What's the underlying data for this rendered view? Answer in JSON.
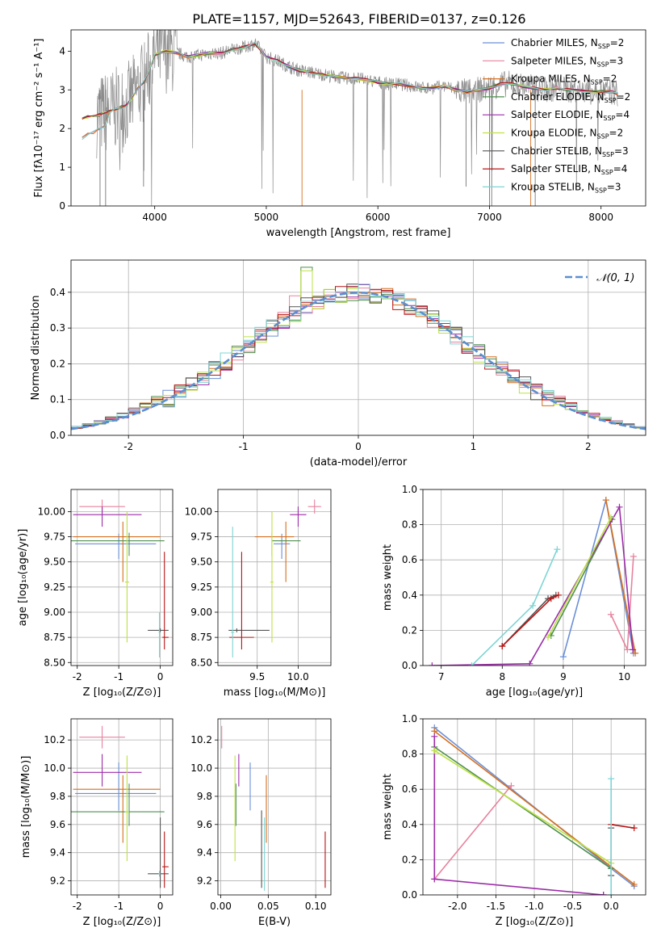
{
  "figure": {
    "title": "PLATE=1157, MJD=52643, FIBERID=0137, z=0.126"
  },
  "colors": [
    "#6b8fd6",
    "#e8829e",
    "#d56f1e",
    "#4f8f4f",
    "#9b2ca8",
    "#bde244",
    "#555555",
    "#b81414",
    "#7fd4d4"
  ],
  "models": [
    {
      "name": "Chabrier MILES, N",
      "sub": "SSP",
      "suffix": "=2"
    },
    {
      "name": "Salpeter MILES, N",
      "sub": "SSP",
      "suffix": "=3"
    },
    {
      "name": "Kroupa MILES, N",
      "sub": "SSP",
      "suffix": "=2"
    },
    {
      "name": "Chabrier ELODIE, N",
      "sub": "SSP",
      "suffix": "=2"
    },
    {
      "name": "Salpeter ELODIE, N",
      "sub": "SSP",
      "suffix": "=4"
    },
    {
      "name": "Kroupa ELODIE, N",
      "sub": "SSP",
      "suffix": "=2"
    },
    {
      "name": "Chabrier STELIB, N",
      "sub": "SSP",
      "suffix": "=3"
    },
    {
      "name": "Salpeter STELIB, N",
      "sub": "SSP",
      "suffix": "=4"
    },
    {
      "name": "Kroupa STELIB, N",
      "sub": "SSP",
      "suffix": "=3"
    }
  ],
  "chart_data": [
    {
      "id": "spectrum",
      "type": "line",
      "xlabel": "wavelength [Angstrom, rest frame]",
      "ylabel": "Flux [fλ10⁻¹⁷ erg cm⁻² s⁻¹ A⁻¹]",
      "xlim": [
        3250,
        8400
      ],
      "ylim": [
        0,
        4.55
      ],
      "xticks": [
        4000,
        5000,
        6000,
        7000,
        8000
      ],
      "yticks": [
        0,
        1,
        2,
        3,
        4
      ],
      "data_x": [
        3500,
        3700,
        3900,
        4100,
        4300,
        4500,
        4700,
        4900,
        5100,
        5300,
        5500,
        5700,
        5900,
        6100,
        6300,
        6500,
        6700,
        6900,
        7100,
        7300,
        7500,
        7700,
        7900,
        8100
      ],
      "data_y": [
        2.1,
        2.6,
        3.6,
        3.9,
        3.8,
        3.9,
        3.85,
        4.0,
        3.6,
        3.45,
        3.35,
        3.25,
        3.3,
        3.1,
        3.05,
        3.0,
        2.9,
        3.0,
        3.1,
        3.0,
        3.0,
        2.95,
        2.95,
        2.9
      ],
      "model_x": [
        3350,
        3400,
        3450,
        3500,
        3550,
        3600,
        3650,
        3700,
        3750,
        3800,
        3850,
        3900,
        3950,
        4000,
        4100,
        4200,
        4300,
        4400,
        4500,
        4600,
        4700,
        4800,
        4900,
        5000,
        5100,
        5200,
        5300,
        5400,
        5500,
        5600,
        5700,
        5800,
        5900,
        6000,
        6100,
        6200,
        6300,
        6400,
        6500,
        6600,
        6700,
        6800,
        6900,
        7000,
        7100,
        7200,
        7300,
        7400,
        7500,
        7600,
        7700,
        7800,
        7900,
        8000,
        8100,
        8150
      ],
      "model_y": [
        2.25,
        2.3,
        2.3,
        2.35,
        2.4,
        2.45,
        2.5,
        2.55,
        2.6,
        2.8,
        3.05,
        3.2,
        3.5,
        3.9,
        4.0,
        3.95,
        3.85,
        3.9,
        3.95,
        3.95,
        4.05,
        4.1,
        4.2,
        3.85,
        3.75,
        3.6,
        3.5,
        3.45,
        3.4,
        3.35,
        3.3,
        3.3,
        3.25,
        3.2,
        3.15,
        3.15,
        3.1,
        3.05,
        3.05,
        3.1,
        3.0,
        2.95,
        3.0,
        3.05,
        3.15,
        3.15,
        3.1,
        3.05,
        3.0,
        3.05,
        3.0,
        3.0,
        2.95,
        2.95,
        2.95,
        2.9
      ],
      "model_low_y": [
        1.75,
        1.85,
        1.9,
        2.0,
        2.05
      ]
    },
    {
      "id": "residuals",
      "type": "area",
      "xlabel": "(data-model)/error",
      "ylabel": "Normed distribution",
      "xlim": [
        -2.5,
        2.5
      ],
      "ylim": [
        0,
        0.49
      ],
      "xticks": [
        -2,
        -1,
        0,
        1,
        2
      ],
      "yticks": [
        0.0,
        0.1,
        0.2,
        0.3,
        0.4
      ],
      "legend": "𝒩(0, 1)",
      "bin_width": 0.1,
      "bin_start": -2.5
    },
    {
      "id": "age-vs-Z",
      "type": "scatter",
      "xlabel": "Z [log₁₀(Z/Z⊙)]",
      "ylabel": "age  [log₁₀(age/yr)]",
      "xlim": [
        -2.15,
        0.3
      ],
      "ylim": [
        8.47,
        10.22
      ],
      "xticks": [
        -2,
        -1,
        0
      ],
      "yticks": [
        8.5,
        8.75,
        9.0,
        9.25,
        9.5,
        9.75,
        10.0
      ],
      "points": [
        {
          "m": 0,
          "x": -1.0,
          "xerr": [
            1.05,
            0.9
          ],
          "y": 9.68,
          "yerr": [
            0.15,
            0.1
          ]
        },
        {
          "m": 1,
          "x": -1.4,
          "xerr": [
            0.55,
            0.55
          ],
          "y": 10.05,
          "yerr": [
            0.07,
            0.07
          ]
        },
        {
          "m": 2,
          "x": -0.9,
          "xerr": [
            1.2,
            0.9
          ],
          "y": 9.75,
          "yerr": [
            0.45,
            0.15
          ]
        },
        {
          "m": 3,
          "x": -0.75,
          "xerr": [
            1.4,
            0.85
          ],
          "y": 9.71,
          "yerr": [
            0.15,
            0.08
          ]
        },
        {
          "m": 4,
          "x": -1.4,
          "xerr": [
            0.7,
            0.95
          ],
          "y": 9.97,
          "yerr": [
            0.12,
            0.08
          ]
        },
        {
          "m": 5,
          "x": -0.8,
          "xerr": [
            0.05,
            0.05
          ],
          "y": 9.3,
          "yerr": [
            0.6,
            0.7
          ]
        },
        {
          "m": 6,
          "x": -0.0,
          "xerr": [
            0.3,
            0.2
          ],
          "y": 8.82,
          "yerr": [
            0.02,
            0.02
          ]
        },
        {
          "m": 7,
          "x": 0.1,
          "xerr": [
            0.05,
            0.1
          ],
          "y": 8.75,
          "yerr": [
            0.12,
            0.85
          ]
        },
        {
          "m": 8,
          "x": -0.02,
          "xerr": [
            0.02,
            0.02
          ],
          "y": 8.8,
          "yerr": [
            0.25,
            0.2
          ]
        }
      ]
    },
    {
      "id": "age-vs-mass",
      "type": "scatter",
      "xlabel": "mass [log₁₀(M/M⊙)]",
      "ylabel": "",
      "xlim": [
        9.02,
        10.4
      ],
      "ylim": [
        8.47,
        10.22
      ],
      "xticks": [
        9.5,
        10.0
      ],
      "yticks": [
        8.5,
        8.75,
        9.0,
        9.25,
        9.5,
        9.75,
        10.0
      ],
      "points": [
        {
          "m": 0,
          "x": 9.8,
          "xerr": [
            0.1,
            0.1
          ],
          "y": 9.68,
          "yerr": [
            0.15,
            0.1
          ]
        },
        {
          "m": 1,
          "x": 10.2,
          "xerr": [
            0.08,
            0.08
          ],
          "y": 10.05,
          "yerr": [
            0.07,
            0.07
          ]
        },
        {
          "m": 2,
          "x": 9.85,
          "xerr": [
            0.38,
            0.1
          ],
          "y": 9.75,
          "yerr": [
            0.45,
            0.15
          ]
        },
        {
          "m": 3,
          "x": 9.68,
          "xerr": [
            0.0,
            0.35
          ],
          "y": 9.71,
          "yerr": [
            0.15,
            0.08
          ]
        },
        {
          "m": 4,
          "x": 10.0,
          "xerr": [
            0.1,
            0.1
          ],
          "y": 9.97,
          "yerr": [
            0.12,
            0.08
          ]
        },
        {
          "m": 5,
          "x": 9.68,
          "xerr": [
            0.02,
            0.02
          ],
          "y": 9.3,
          "yerr": [
            0.6,
            0.7
          ]
        },
        {
          "m": 6,
          "x": 9.25,
          "xerr": [
            0.1,
            0.4
          ],
          "y": 8.82,
          "yerr": [
            0.02,
            0.02
          ]
        },
        {
          "m": 7,
          "x": 9.31,
          "xerr": [
            0.15,
            0.15
          ],
          "y": 8.75,
          "yerr": [
            0.12,
            0.85
          ]
        },
        {
          "m": 8,
          "x": 9.2,
          "xerr": [
            0.02,
            0.02
          ],
          "y": 8.8,
          "yerr": [
            0.25,
            1.05
          ]
        }
      ]
    },
    {
      "id": "massweight-vs-age",
      "type": "line",
      "xlabel": "age  [log₁₀(age/yr)]",
      "ylabel": "mass weight",
      "xlim": [
        6.7,
        10.35
      ],
      "ylim": [
        0,
        1.0
      ],
      "xticks": [
        7,
        8,
        9,
        10
      ],
      "yticks": [
        0.0,
        0.2,
        0.4,
        0.6,
        0.8,
        1.0
      ],
      "series": [
        {
          "m": 0,
          "x": [
            9.0,
            9.7,
            10.15
          ],
          "y": [
            0.05,
            0.94,
            0.07
          ]
        },
        {
          "m": 1,
          "x": [
            9.78,
            10.05,
            10.15
          ],
          "y": [
            0.29,
            0.09,
            0.62
          ]
        },
        {
          "m": 2,
          "x": [
            9.7,
            10.18
          ],
          "y": [
            0.94,
            0.07
          ]
        },
        {
          "m": 3,
          "x": [
            8.8,
            9.8
          ],
          "y": [
            0.17,
            0.83
          ]
        },
        {
          "m": 4,
          "x": [
            6.85,
            8.45,
            9.92,
            10.14
          ],
          "y": [
            0.0,
            0.01,
            0.9,
            0.09
          ]
        },
        {
          "m": 5,
          "x": [
            8.75,
            9.78
          ],
          "y": [
            0.16,
            0.84
          ]
        },
        {
          "m": 6,
          "x": [
            8.0,
            8.75,
            8.88
          ],
          "y": [
            0.11,
            0.38,
            0.4
          ]
        },
        {
          "m": 7,
          "x": [
            8.0,
            8.8,
            8.92
          ],
          "y": [
            0.11,
            0.38,
            0.4
          ]
        },
        {
          "m": 8,
          "x": [
            7.5,
            8.5,
            8.9
          ],
          "y": [
            0.0,
            0.34,
            0.66
          ]
        }
      ]
    },
    {
      "id": "mass-vs-Z",
      "type": "scatter",
      "xlabel": "Z [log₁₀(Z/Z⊙)]",
      "ylabel": "mass [log₁₀(M/M⊙)]",
      "xlim": [
        -2.15,
        0.3
      ],
      "ylim": [
        9.1,
        10.35
      ],
      "xticks": [
        -2,
        -1,
        0
      ],
      "yticks": [
        9.2,
        9.4,
        9.6,
        9.8,
        10.0,
        10.2
      ],
      "points": [
        {
          "m": 0,
          "x": -1.0,
          "xerr": [
            1.05,
            0.9
          ],
          "y": 9.82,
          "yerr": [
            0.12,
            0.22
          ]
        },
        {
          "m": 1,
          "x": -1.4,
          "xerr": [
            0.55,
            0.55
          ],
          "y": 10.22,
          "yerr": [
            0.08,
            0.08
          ]
        },
        {
          "m": 2,
          "x": -0.9,
          "xerr": [
            1.2,
            0.9
          ],
          "y": 9.85,
          "yerr": [
            0.38,
            0.1
          ]
        },
        {
          "m": 3,
          "x": -0.75,
          "xerr": [
            1.4,
            0.85
          ],
          "y": 9.69,
          "yerr": [
            0.1,
            0.2
          ]
        },
        {
          "m": 4,
          "x": -1.4,
          "xerr": [
            0.7,
            0.95
          ],
          "y": 9.97,
          "yerr": [
            0.1,
            0.13
          ]
        },
        {
          "m": 5,
          "x": -0.8,
          "xerr": [
            0.05,
            0.05
          ],
          "y": 9.69,
          "yerr": [
            0.35,
            0.4
          ]
        },
        {
          "m": 6,
          "x": -0.0,
          "xerr": [
            0.3,
            0.2
          ],
          "y": 9.25,
          "yerr": [
            0.1,
            0.4
          ]
        },
        {
          "m": 7,
          "x": 0.1,
          "xerr": [
            0.05,
            0.1
          ],
          "y": 9.3,
          "yerr": [
            0.15,
            0.25
          ]
        },
        {
          "m": 8,
          "x": -0.02,
          "xerr": [
            0.02,
            0.02
          ],
          "y": 9.25,
          "yerr": [
            0.02,
            0.02
          ]
        }
      ]
    },
    {
      "id": "mass-vs-EBV",
      "type": "scatter",
      "xlabel": "E(B-V)",
      "ylabel": "",
      "xlim": [
        -0.003,
        0.116
      ],
      "ylim": [
        9.1,
        10.35
      ],
      "xticks": [
        0.0,
        0.05,
        0.1
      ],
      "yticks": [
        9.2,
        9.4,
        9.6,
        9.8,
        10.0,
        10.2
      ],
      "points": [
        {
          "m": 0,
          "x": 0.031,
          "xerr": [
            0,
            0
          ],
          "y": 9.82,
          "yerr": [
            0.12,
            0.22
          ]
        },
        {
          "m": 1,
          "x": 0.001,
          "xerr": [
            0,
            0
          ],
          "y": 10.22,
          "yerr": [
            0.08,
            0.08
          ]
        },
        {
          "m": 2,
          "x": 0.048,
          "xerr": [
            0,
            0
          ],
          "y": 9.85,
          "yerr": [
            0.38,
            0.1
          ]
        },
        {
          "m": 3,
          "x": 0.016,
          "xerr": [
            0,
            0
          ],
          "y": 9.69,
          "yerr": [
            0.1,
            0.2
          ]
        },
        {
          "m": 4,
          "x": 0.019,
          "xerr": [
            0,
            0
          ],
          "y": 9.97,
          "yerr": [
            0.1,
            0.13
          ]
        },
        {
          "m": 5,
          "x": 0.015,
          "xerr": [
            0,
            0
          ],
          "y": 9.69,
          "yerr": [
            0.35,
            0.4
          ]
        },
        {
          "m": 6,
          "x": 0.043,
          "xerr": [
            0,
            0
          ],
          "y": 9.4,
          "yerr": [
            0.25,
            0.3
          ]
        },
        {
          "m": 7,
          "x": 0.11,
          "xerr": [
            0,
            0
          ],
          "y": 9.35,
          "yerr": [
            0.2,
            0.2
          ]
        },
        {
          "m": 8,
          "x": 0.046,
          "xerr": [
            0,
            0
          ],
          "y": 9.35,
          "yerr": [
            0.22,
            0.3
          ]
        }
      ]
    },
    {
      "id": "massweight-vs-Z",
      "type": "line",
      "xlabel": "Z [log₁₀(Z/Z⊙)]",
      "ylabel": "mass weight",
      "xlim": [
        -2.45,
        0.45
      ],
      "ylim": [
        0,
        1.0
      ],
      "xticks": [
        -2.0,
        -1.5,
        -1.0,
        -0.5,
        0.0
      ],
      "yticks": [
        0.0,
        0.2,
        0.4,
        0.6,
        0.8,
        1.0
      ],
      "series": [
        {
          "m": 0,
          "x": [
            -2.3,
            0.0,
            0.3
          ],
          "y": [
            0.95,
            0.15,
            0.05
          ]
        },
        {
          "m": 1,
          "x": [
            -2.3,
            -1.3
          ],
          "y": [
            0.09,
            0.62
          ]
        },
        {
          "m": 2,
          "x": [
            -2.3,
            0.3
          ],
          "y": [
            0.93,
            0.06
          ]
        },
        {
          "m": 3,
          "x": [
            -2.3,
            0.0
          ],
          "y": [
            0.84,
            0.15
          ]
        },
        {
          "m": 4,
          "x": [
            -2.3,
            -2.3,
            -0.1,
            -0.1
          ],
          "y": [
            0.9,
            0.09,
            0.0,
            0.0
          ]
        },
        {
          "m": 5,
          "x": [
            -2.3,
            0.0
          ],
          "y": [
            0.82,
            0.18
          ]
        },
        {
          "m": 6,
          "x": [
            0.0,
            0.0
          ],
          "y": [
            0.11,
            0.38
          ]
        },
        {
          "m": 7,
          "x": [
            0.0,
            0.3
          ],
          "y": [
            0.4,
            0.38
          ]
        },
        {
          "m": 8,
          "x": [
            0.0,
            0.0
          ],
          "y": [
            0.0,
            0.66
          ]
        }
      ]
    }
  ]
}
